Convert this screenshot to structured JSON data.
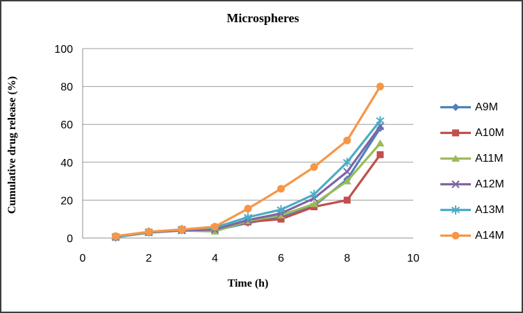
{
  "window": {
    "background": "#ffffff",
    "border_color": "#3d3d3d"
  },
  "chart_data": {
    "type": "line",
    "title": "Microspheres",
    "xlabel": "Time (h)",
    "ylabel": "Cumulative drug release (%)",
    "xlim": [
      0,
      10
    ],
    "ylim": [
      0,
      100
    ],
    "x_ticks": [
      0,
      2,
      4,
      6,
      8,
      10
    ],
    "y_ticks": [
      0,
      20,
      40,
      60,
      80,
      100
    ],
    "grid": "horizontal",
    "gridline_color": "#9c9c9c",
    "axis_color": "#8c8c8c",
    "legend_position": "right",
    "x": [
      1,
      2,
      3,
      4,
      5,
      6,
      7,
      8,
      9
    ],
    "series": [
      {
        "name": "A9M",
        "color": "#4F81BD",
        "marker": "diamond",
        "values": [
          0.5,
          3.0,
          4.0,
          4.0,
          8.0,
          11.0,
          17.0,
          31.0,
          58.0
        ]
      },
      {
        "name": "A10M",
        "color": "#C0504D",
        "marker": "square",
        "values": [
          0.5,
          3.0,
          4.5,
          4.5,
          8.5,
          10.0,
          16.5,
          20.0,
          44.0
        ]
      },
      {
        "name": "A11M",
        "color": "#9BBB59",
        "marker": "triangle",
        "values": [
          0.5,
          2.8,
          4.0,
          3.5,
          9.0,
          12.0,
          18.0,
          30.0,
          50.0
        ]
      },
      {
        "name": "A12M",
        "color": "#8064A2",
        "marker": "x",
        "values": [
          0.5,
          3.0,
          4.0,
          4.5,
          9.5,
          13.0,
          21.0,
          35.0,
          59.0
        ]
      },
      {
        "name": "A13M",
        "color": "#4BACC6",
        "marker": "asterisk",
        "values": [
          0.5,
          3.2,
          4.5,
          5.5,
          11.0,
          15.0,
          23.0,
          40.0,
          62.0
        ]
      },
      {
        "name": "A14M",
        "color": "#F79646",
        "marker": "circle",
        "values": [
          1.0,
          3.3,
          4.5,
          6.0,
          15.5,
          26.0,
          37.5,
          51.5,
          80.0
        ]
      }
    ]
  }
}
